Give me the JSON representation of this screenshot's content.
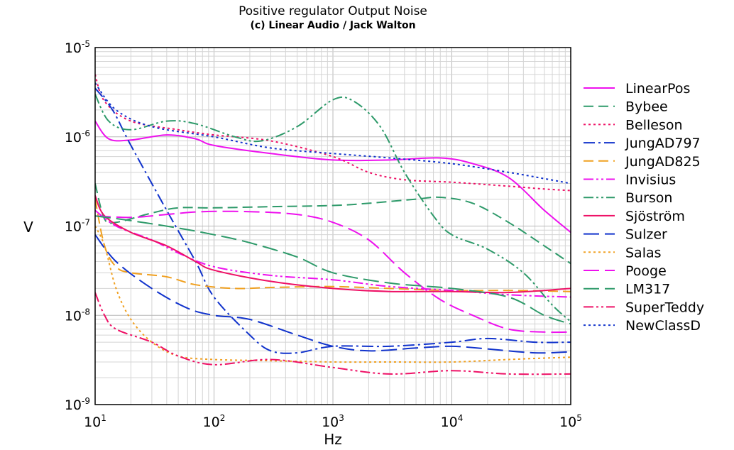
{
  "chart_data": {
    "type": "line",
    "title": "Positive regulator Output Noise",
    "subtitle": "(c) Linear Audio / Jack Walton",
    "xlabel": "Hz",
    "ylabel": "V",
    "xscale": "log",
    "yscale": "log",
    "xlim": [
      10,
      100000
    ],
    "ylim": [
      1e-09,
      1e-05
    ],
    "grid": true,
    "legend_position": "right",
    "x_ticks": [
      {
        "base": "10",
        "exp": "1"
      },
      {
        "base": "10",
        "exp": "2"
      },
      {
        "base": "10",
        "exp": "3"
      },
      {
        "base": "10",
        "exp": "4"
      },
      {
        "base": "10",
        "exp": "5"
      }
    ],
    "y_ticks": [
      {
        "base": "10",
        "exp": "-9"
      },
      {
        "base": "10",
        "exp": "-8"
      },
      {
        "base": "10",
        "exp": "-7"
      },
      {
        "base": "10",
        "exp": "-6"
      },
      {
        "base": "10",
        "exp": "-5"
      }
    ],
    "series": [
      {
        "name": "LinearPos",
        "color": "#ee11ee",
        "style": "solid",
        "points": [
          [
            10,
            1.5e-06
          ],
          [
            13,
            9.5e-07
          ],
          [
            20,
            9.2e-07
          ],
          [
            40,
            1.05e-06
          ],
          [
            70,
            9.5e-07
          ],
          [
            100,
            8e-07
          ],
          [
            300,
            6.5e-07
          ],
          [
            1000,
            5.5e-07
          ],
          [
            3000,
            5.5e-07
          ],
          [
            8000,
            5.8e-07
          ],
          [
            15000,
            5e-07
          ],
          [
            30000,
            3.5e-07
          ],
          [
            60000,
            1.5e-07
          ],
          [
            100000,
            8.5e-08
          ]
        ]
      },
      {
        "name": "Bybee",
        "color": "#2e9a6a",
        "style": "dash",
        "points": [
          [
            10,
            3e-07
          ],
          [
            12,
            1.2e-07
          ],
          [
            15,
            1.1e-07
          ],
          [
            30,
            1.4e-07
          ],
          [
            50,
            1.6e-07
          ],
          [
            100,
            1.6e-07
          ],
          [
            300,
            1.65e-07
          ],
          [
            1000,
            1.7e-07
          ],
          [
            2000,
            1.8e-07
          ],
          [
            5000,
            2e-07
          ],
          [
            8000,
            2.1e-07
          ],
          [
            15000,
            1.8e-07
          ],
          [
            30000,
            1.1e-07
          ],
          [
            60000,
            6e-08
          ],
          [
            100000,
            3.8e-08
          ]
        ]
      },
      {
        "name": "Belleson",
        "color": "#ee1166",
        "style": "dot",
        "points": [
          [
            10,
            5e-06
          ],
          [
            12,
            2.5e-06
          ],
          [
            20,
            1.5e-06
          ],
          [
            50,
            1.2e-06
          ],
          [
            100,
            1.05e-06
          ],
          [
            300,
            9e-07
          ],
          [
            1000,
            6e-07
          ],
          [
            2000,
            4e-07
          ],
          [
            4000,
            3.3e-07
          ],
          [
            10000,
            3.1e-07
          ],
          [
            30000,
            2.8e-07
          ],
          [
            60000,
            2.6e-07
          ],
          [
            100000,
            2.5e-07
          ]
        ]
      },
      {
        "name": "JungAD797",
        "color": "#1133cc",
        "style": "dashdot",
        "points": [
          [
            10,
            3.5e-06
          ],
          [
            14,
            2e-06
          ],
          [
            20,
            8e-07
          ],
          [
            40,
            1.5e-07
          ],
          [
            70,
            4e-08
          ],
          [
            100,
            1.6e-08
          ],
          [
            200,
            6e-09
          ],
          [
            300,
            4e-09
          ],
          [
            500,
            3.8e-09
          ],
          [
            1000,
            4.5e-09
          ],
          [
            3000,
            4.5e-09
          ],
          [
            10000,
            5e-09
          ],
          [
            20000,
            5.5e-09
          ],
          [
            50000,
            5e-09
          ],
          [
            100000,
            5e-09
          ]
        ]
      },
      {
        "name": "JungAD825",
        "color": "#f0a020",
        "style": "dash",
        "points": [
          [
            10,
            2e-07
          ],
          [
            12,
            6e-08
          ],
          [
            15,
            3.5e-08
          ],
          [
            20,
            3e-08
          ],
          [
            40,
            2.7e-08
          ],
          [
            70,
            2.2e-08
          ],
          [
            150,
            2e-08
          ],
          [
            300,
            2.05e-08
          ],
          [
            1000,
            2.1e-08
          ],
          [
            3000,
            2e-08
          ],
          [
            10000,
            1.9e-08
          ],
          [
            30000,
            1.9e-08
          ],
          [
            100000,
            1.85e-08
          ]
        ]
      },
      {
        "name": "Invisius",
        "color": "#ee11ee",
        "style": "dashdotdot",
        "points": [
          [
            10,
            1.5e-07
          ],
          [
            15,
            1e-07
          ],
          [
            30,
            7e-08
          ],
          [
            50,
            5e-08
          ],
          [
            100,
            3.5e-08
          ],
          [
            300,
            2.8e-08
          ],
          [
            1000,
            2.5e-08
          ],
          [
            3000,
            2.1e-08
          ],
          [
            10000,
            1.9e-08
          ],
          [
            30000,
            1.7e-08
          ],
          [
            100000,
            1.6e-08
          ]
        ]
      },
      {
        "name": "Burson",
        "color": "#2e9a6a",
        "style": "dashdotdot",
        "points": [
          [
            10,
            3e-06
          ],
          [
            13,
            1.5e-06
          ],
          [
            20,
            1.2e-06
          ],
          [
            40,
            1.5e-06
          ],
          [
            70,
            1.4e-06
          ],
          [
            150,
            1e-06
          ],
          [
            250,
            9e-07
          ],
          [
            500,
            1.3e-06
          ],
          [
            1000,
            2.6e-06
          ],
          [
            1500,
            2.5e-06
          ],
          [
            2500,
            1.3e-06
          ],
          [
            4000,
            4e-07
          ],
          [
            7000,
            1.3e-07
          ],
          [
            10000,
            8e-08
          ],
          [
            20000,
            5.5e-08
          ],
          [
            40000,
            3e-08
          ],
          [
            70000,
            1.3e-08
          ],
          [
            100000,
            8.5e-09
          ]
        ]
      },
      {
        "name": "Sjöström",
        "color": "#ee1166",
        "style": "solid",
        "points": [
          [
            10,
            2.2e-07
          ],
          [
            12,
            1.3e-07
          ],
          [
            20,
            8.5e-08
          ],
          [
            40,
            6e-08
          ],
          [
            70,
            4e-08
          ],
          [
            100,
            3.2e-08
          ],
          [
            300,
            2.4e-08
          ],
          [
            1000,
            2e-08
          ],
          [
            3000,
            1.85e-08
          ],
          [
            10000,
            1.85e-08
          ],
          [
            30000,
            1.8e-08
          ],
          [
            100000,
            2e-08
          ]
        ]
      },
      {
        "name": "Sulzer",
        "color": "#1133cc",
        "style": "longdash",
        "points": [
          [
            10,
            8e-08
          ],
          [
            15,
            4e-08
          ],
          [
            30,
            2e-08
          ],
          [
            60,
            1.2e-08
          ],
          [
            100,
            1e-08
          ],
          [
            200,
            9e-09
          ],
          [
            500,
            6e-09
          ],
          [
            1000,
            4.5e-09
          ],
          [
            2000,
            4e-09
          ],
          [
            5000,
            4.3e-09
          ],
          [
            10000,
            4.5e-09
          ],
          [
            20000,
            4.2e-09
          ],
          [
            50000,
            3.8e-09
          ],
          [
            100000,
            3.9e-09
          ]
        ]
      },
      {
        "name": "Salas",
        "color": "#f0a020",
        "style": "dot",
        "points": [
          [
            10,
            1e-07
          ],
          [
            12,
            6e-08
          ],
          [
            15,
            2e-08
          ],
          [
            20,
            9e-09
          ],
          [
            30,
            5e-09
          ],
          [
            50,
            3.5e-09
          ],
          [
            100,
            3.2e-09
          ],
          [
            300,
            3.1e-09
          ],
          [
            1000,
            3e-09
          ],
          [
            3000,
            3e-09
          ],
          [
            10000,
            3e-09
          ],
          [
            30000,
            3.2e-09
          ],
          [
            100000,
            3.4e-09
          ]
        ]
      },
      {
        "name": "Pooge",
        "color": "#ee11ee",
        "style": "longdash",
        "points": [
          [
            10,
            1.3e-07
          ],
          [
            20,
            1.25e-07
          ],
          [
            40,
            1.35e-07
          ],
          [
            80,
            1.45e-07
          ],
          [
            200,
            1.45e-07
          ],
          [
            500,
            1.35e-07
          ],
          [
            1000,
            1.1e-07
          ],
          [
            2000,
            7e-08
          ],
          [
            4000,
            3e-08
          ],
          [
            8000,
            1.5e-08
          ],
          [
            15000,
            1e-08
          ],
          [
            30000,
            7e-09
          ],
          [
            60000,
            6.5e-09
          ],
          [
            100000,
            6.5e-09
          ]
        ]
      },
      {
        "name": "LM317",
        "color": "#2e9a6a",
        "style": "longdash",
        "points": [
          [
            10,
            1.3e-07
          ],
          [
            20,
            1.15e-07
          ],
          [
            50,
            9.5e-08
          ],
          [
            100,
            8e-08
          ],
          [
            200,
            6.5e-08
          ],
          [
            500,
            4.5e-08
          ],
          [
            1000,
            3e-08
          ],
          [
            3000,
            2.3e-08
          ],
          [
            10000,
            2e-08
          ],
          [
            30000,
            1.6e-08
          ],
          [
            60000,
            1e-08
          ],
          [
            100000,
            8e-09
          ]
        ]
      },
      {
        "name": "SuperTeddy",
        "color": "#ee1166",
        "style": "dashdotdot",
        "points": [
          [
            10,
            1.8e-08
          ],
          [
            12,
            1e-08
          ],
          [
            15,
            7e-09
          ],
          [
            30,
            5e-09
          ],
          [
            50,
            3.5e-09
          ],
          [
            100,
            2.8e-09
          ],
          [
            300,
            3.2e-09
          ],
          [
            1000,
            2.6e-09
          ],
          [
            3000,
            2.2e-09
          ],
          [
            10000,
            2.4e-09
          ],
          [
            30000,
            2.2e-09
          ],
          [
            100000,
            2.2e-09
          ]
        ]
      },
      {
        "name": "NewClassD",
        "color": "#1133cc",
        "style": "dot",
        "points": [
          [
            10,
            4e-06
          ],
          [
            15,
            2e-06
          ],
          [
            30,
            1.3e-06
          ],
          [
            100,
            1e-06
          ],
          [
            300,
            7.5e-07
          ],
          [
            1000,
            6.5e-07
          ],
          [
            3000,
            5.8e-07
          ],
          [
            10000,
            5e-07
          ],
          [
            30000,
            4e-07
          ],
          [
            60000,
            3.4e-07
          ],
          [
            100000,
            3e-07
          ]
        ]
      }
    ]
  }
}
